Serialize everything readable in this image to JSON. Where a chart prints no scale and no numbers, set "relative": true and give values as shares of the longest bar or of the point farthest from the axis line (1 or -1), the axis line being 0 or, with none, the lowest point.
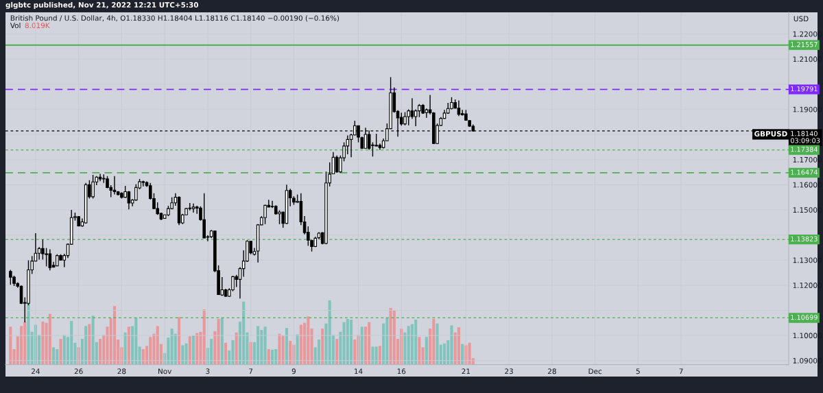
{
  "chart_data": [
    {
      "type": "candlestick",
      "title": "British Pound / U.S. Dollar, 4h, O1.18330 H1.18404 L1.18116 C1.18140 −0.00190 (−0.16%)",
      "ylabel": "USD",
      "annotations": [
        "glgbtc published, Nov 21, 2022 12:21 UTC+5:30",
        "GBPUSD"
      ],
      "categories": [
        null,
        null,
        null,
        null,
        null,
        null,
        null,
        "24",
        null,
        null,
        null,
        null,
        null,
        null,
        null,
        null,
        null,
        null,
        null,
        "26",
        null,
        null,
        null,
        null,
        null,
        null,
        null,
        null,
        null,
        null,
        null,
        "28",
        null,
        null,
        null,
        null,
        null,
        null,
        null,
        null,
        null,
        null,
        null,
        "Nov",
        null,
        null,
        null,
        null,
        null,
        null,
        null,
        null,
        null,
        null,
        null,
        "3",
        null,
        null,
        null,
        null,
        null,
        null,
        null,
        null,
        null,
        null,
        null,
        "7",
        null,
        null,
        null,
        null,
        null,
        null,
        null,
        null,
        null,
        null,
        null,
        "9",
        null,
        null,
        null,
        null,
        null,
        null,
        null,
        null,
        null,
        null,
        null,
        null,
        null,
        null,
        null,
        null,
        null,
        "14",
        null,
        null,
        null,
        null,
        null,
        null,
        null,
        null,
        null,
        null,
        null,
        "16",
        null,
        null,
        null,
        null,
        null,
        null,
        null,
        null,
        null,
        null,
        null,
        null,
        null,
        null,
        null,
        null,
        null,
        "21",
        null,
        null,
        null,
        null,
        null,
        null,
        null,
        null,
        null,
        null,
        null,
        "23",
        null,
        null,
        null,
        null,
        null,
        null,
        null,
        null,
        null,
        null,
        null,
        "28",
        null,
        null,
        null,
        null,
        null,
        null,
        null,
        null,
        null,
        null,
        null,
        "Dec",
        null,
        null,
        null,
        null,
        null,
        null,
        null,
        null,
        null,
        null,
        null,
        "5",
        null,
        null,
        null,
        null,
        null,
        null,
        null,
        null,
        null,
        null,
        null,
        "7",
        null,
        null,
        null,
        null,
        null,
        null,
        null,
        null,
        null,
        null,
        null,
        null,
        null,
        null,
        null,
        null,
        null,
        null,
        null,
        null,
        null,
        null,
        null,
        null,
        null,
        null,
        null,
        null,
        null,
        null
      ],
      "ohlc": [
        [
          1.1255,
          1.1261,
          1.1202,
          1.1232
        ],
        [
          1.1232,
          1.1238,
          1.1197,
          1.1207
        ],
        [
          1.1207,
          1.1211,
          1.119,
          1.1196
        ],
        [
          1.1196,
          1.1199,
          1.1125,
          1.1128
        ],
        [
          1.1128,
          1.1152,
          1.1052,
          1.1131
        ],
        [
          1.1128,
          1.1299,
          1.112,
          1.1261
        ],
        [
          1.1261,
          1.1316,
          1.1245,
          1.1296
        ],
        [
          1.1296,
          1.1407,
          1.1296,
          1.1327
        ],
        [
          1.1327,
          1.1352,
          1.1302,
          1.1346
        ],
        [
          1.1346,
          1.1382,
          1.1302,
          1.1325
        ],
        [
          1.1325,
          1.1348,
          1.1275,
          1.1322
        ],
        [
          1.1325,
          1.1343,
          1.1259,
          1.127
        ],
        [
          1.1279,
          1.1293,
          1.127,
          1.1272
        ],
        [
          1.1277,
          1.1323,
          1.1277,
          1.1318
        ],
        [
          1.1318,
          1.1323,
          1.1298,
          1.13
        ],
        [
          1.13,
          1.1325,
          1.1272,
          1.1318
        ],
        [
          1.1318,
          1.1366,
          1.1308,
          1.1363
        ],
        [
          1.1363,
          1.15,
          1.1361,
          1.1469
        ],
        [
          1.1469,
          1.1489,
          1.1457,
          1.1473
        ],
        [
          1.1473,
          1.1475,
          1.1434,
          1.1436
        ],
        [
          1.1436,
          1.1466,
          1.1432,
          1.1452
        ],
        [
          1.1448,
          1.1607,
          1.1445,
          1.16
        ],
        [
          1.16,
          1.1618,
          1.1545,
          1.1552
        ],
        [
          1.1552,
          1.1639,
          1.1545,
          1.1611
        ],
        [
          1.1611,
          1.1634,
          1.1598,
          1.163
        ],
        [
          1.163,
          1.1643,
          1.1614,
          1.1623
        ],
        [
          1.1623,
          1.1641,
          1.1607,
          1.1625
        ],
        [
          1.1623,
          1.1634,
          1.1586,
          1.1589
        ],
        [
          1.1589,
          1.1598,
          1.155,
          1.1578
        ],
        [
          1.1578,
          1.1634,
          1.1561,
          1.1572
        ],
        [
          1.1572,
          1.1575,
          1.1557,
          1.1561
        ],
        [
          1.1566,
          1.157,
          1.1545,
          1.155
        ],
        [
          1.155,
          1.1595,
          1.1548,
          1.1572
        ],
        [
          1.1572,
          1.1575,
          1.1502,
          1.1527
        ],
        [
          1.1527,
          1.1543,
          1.1514,
          1.1539
        ],
        [
          1.1539,
          1.1602,
          1.1536,
          1.1589
        ],
        [
          1.1587,
          1.1623,
          1.1582,
          1.1612
        ],
        [
          1.1612,
          1.1616,
          1.1593,
          1.1609
        ],
        [
          1.1609,
          1.1613,
          1.1591,
          1.1596
        ],
        [
          1.1596,
          1.1607,
          1.1541,
          1.1545
        ],
        [
          1.1545,
          1.1566,
          1.1503,
          1.1505
        ],
        [
          1.1505,
          1.153,
          1.148,
          1.1484
        ],
        [
          1.1486,
          1.1489,
          1.1459,
          1.1463
        ],
        [
          1.1466,
          1.1481,
          1.1466,
          1.148
        ],
        [
          1.148,
          1.1516,
          1.1475,
          1.1505
        ],
        [
          1.1505,
          1.155,
          1.1502,
          1.1528
        ],
        [
          1.1528,
          1.1566,
          1.1516,
          1.155
        ],
        [
          1.155,
          1.1554,
          1.1439,
          1.1448
        ],
        [
          1.1448,
          1.1484,
          1.1443,
          1.148
        ],
        [
          1.148,
          1.1507,
          1.148,
          1.1505
        ],
        [
          1.1505,
          1.1527,
          1.1498,
          1.1507
        ],
        [
          1.1505,
          1.1525,
          1.1489,
          1.1511
        ],
        [
          1.1511,
          1.1516,
          1.1484,
          1.1507
        ],
        [
          1.1507,
          1.1514,
          1.1457,
          1.1461
        ],
        [
          1.1461,
          1.1566,
          1.1387,
          1.1388
        ],
        [
          1.1391,
          1.1399,
          1.1375,
          1.1393
        ],
        [
          1.1393,
          1.142,
          1.1388,
          1.1416
        ],
        [
          1.1416,
          1.1416,
          1.1252,
          1.1257
        ],
        [
          1.1258,
          1.1279,
          1.1161,
          1.1163
        ],
        [
          1.1161,
          1.1232,
          1.1158,
          1.1182
        ],
        [
          1.1182,
          1.1186,
          1.1154,
          1.1156
        ],
        [
          1.1156,
          1.1188,
          1.1154,
          1.1182
        ],
        [
          1.1182,
          1.1238,
          1.1176,
          1.1234
        ],
        [
          1.1234,
          1.1241,
          1.1193,
          1.1223
        ],
        [
          1.1223,
          1.1272,
          1.1147,
          1.1266
        ],
        [
          1.1266,
          1.1339,
          1.1234,
          1.1296
        ],
        [
          1.1296,
          1.1379,
          1.1293,
          1.1375
        ],
        [
          1.1375,
          1.1375,
          1.1323,
          1.1329
        ],
        [
          1.1323,
          1.1348,
          1.1318,
          1.1334
        ],
        [
          1.1336,
          1.1443,
          1.129,
          1.144
        ],
        [
          1.144,
          1.1475,
          1.1439,
          1.1469
        ],
        [
          1.1469,
          1.152,
          1.1443,
          1.1518
        ],
        [
          1.1518,
          1.154,
          1.1511,
          1.1511
        ],
        [
          1.1512,
          1.1536,
          1.1507,
          1.1514
        ],
        [
          1.1514,
          1.1518,
          1.1481,
          1.1484
        ],
        [
          1.1484,
          1.1498,
          1.1443,
          1.1491
        ],
        [
          1.1491,
          1.1493,
          1.1429,
          1.1446
        ],
        [
          1.1446,
          1.16,
          1.1443,
          1.1577
        ],
        [
          1.1577,
          1.1584,
          1.1514,
          1.1548
        ],
        [
          1.1546,
          1.1554,
          1.152,
          1.1531
        ],
        [
          1.153,
          1.1561,
          1.1527,
          1.1534
        ],
        [
          1.1534,
          1.1566,
          1.1439,
          1.1452
        ],
        [
          1.1452,
          1.1475,
          1.1402,
          1.1409
        ],
        [
          1.1411,
          1.1434,
          1.1357,
          1.1379
        ],
        [
          1.1378,
          1.1381,
          1.1334,
          1.1354
        ],
        [
          1.1354,
          1.1393,
          1.1352,
          1.1387
        ],
        [
          1.1389,
          1.1411,
          1.1384,
          1.1407
        ],
        [
          1.1409,
          1.1411,
          1.1363,
          1.1366
        ],
        [
          1.1366,
          1.1652,
          1.1363,
          1.1607
        ],
        [
          1.1607,
          1.1689,
          1.1593,
          1.1642
        ],
        [
          1.1643,
          1.173,
          1.1642,
          1.1709
        ],
        [
          1.1709,
          1.1716,
          1.1648,
          1.1651
        ],
        [
          1.1651,
          1.1716,
          1.1648,
          1.1707
        ],
        [
          1.1707,
          1.1769,
          1.1693,
          1.1754
        ],
        [
          1.1754,
          1.1796,
          1.1721,
          1.178
        ],
        [
          1.178,
          1.1803,
          1.1709,
          1.1798
        ],
        [
          1.1798,
          1.1855,
          1.1796,
          1.1835
        ],
        [
          1.1835,
          1.1835,
          1.1769,
          1.1789
        ],
        [
          1.1787,
          1.1791,
          1.1744,
          1.1745
        ],
        [
          1.1745,
          1.1827,
          1.1744,
          1.18
        ],
        [
          1.18,
          1.1816,
          1.1739,
          1.1745
        ],
        [
          1.1756,
          1.1769,
          1.1712,
          1.1758
        ],
        [
          1.1757,
          1.1803,
          1.1753,
          1.1754
        ],
        [
          1.1757,
          1.1764,
          1.1739,
          1.1748
        ],
        [
          1.1748,
          1.1784,
          1.1744,
          1.1775
        ],
        [
          1.1775,
          1.1844,
          1.1773,
          1.1823
        ],
        [
          1.1823,
          1.2028,
          1.1821,
          1.1966
        ],
        [
          1.1966,
          1.1987,
          1.1887,
          1.1891
        ],
        [
          1.1892,
          1.1896,
          1.1791,
          1.1866
        ],
        [
          1.1868,
          1.1887,
          1.1835,
          1.1842
        ],
        [
          1.1842,
          1.1889,
          1.1836,
          1.1871
        ],
        [
          1.1871,
          1.19,
          1.1836,
          1.1894
        ],
        [
          1.1894,
          1.1944,
          1.1862,
          1.1871
        ],
        [
          1.1871,
          1.19,
          1.1833,
          1.1894
        ],
        [
          1.1894,
          1.1921,
          1.1869,
          1.1915
        ],
        [
          1.1916,
          1.1921,
          1.1882,
          1.1885
        ],
        [
          1.1887,
          1.1903,
          1.1866,
          1.1898
        ],
        [
          1.1898,
          1.1957,
          1.188,
          1.1886
        ],
        [
          1.1886,
          1.1889,
          1.1762,
          1.1764
        ],
        [
          1.1764,
          1.1844,
          1.1762,
          1.1836
        ],
        [
          1.1836,
          1.1869,
          1.1835,
          1.1864
        ],
        [
          1.1864,
          1.1898,
          1.1862,
          1.1885
        ],
        [
          1.1885,
          1.1926,
          1.1882,
          1.1903
        ],
        [
          1.1903,
          1.1948,
          1.19,
          1.1927
        ],
        [
          1.1927,
          1.1939,
          1.1903,
          1.1905
        ],
        [
          1.1905,
          1.1935,
          1.1873,
          1.188
        ],
        [
          1.1883,
          1.1898,
          1.1875,
          1.1878
        ],
        [
          1.1882,
          1.1898,
          1.1855,
          1.1857
        ],
        [
          1.1855,
          1.1857,
          1.183,
          1.1833
        ],
        [
          1.1833,
          1.184,
          1.1812,
          1.1814
        ],
        null,
        null,
        null,
        null,
        null,
        null,
        null,
        null,
        null,
        null,
        null,
        null,
        null,
        null,
        null,
        null,
        null,
        null,
        null,
        null,
        null,
        null,
        null,
        null,
        null,
        null,
        null,
        null,
        null,
        null,
        null,
        null,
        null,
        null,
        null,
        null,
        null,
        null,
        null,
        null,
        null,
        null,
        null,
        null,
        null,
        null,
        null,
        null,
        null,
        null,
        null,
        null,
        null,
        null,
        null,
        null,
        null,
        null,
        null,
        null,
        null,
        null,
        null,
        null,
        null,
        null,
        null,
        null,
        null,
        null,
        null,
        null,
        null,
        null,
        null,
        null,
        null,
        null,
        null,
        null,
        null,
        null,
        null,
        null,
        null,
        null,
        null,
        null
      ],
      "ylim": [
        1.0884,
        1.2286
      ],
      "yticks": [
        {
          "value": 1.09,
          "label": "1.09000"
        },
        {
          "value": 1.1,
          "label": "1.10000"
        },
        {
          "value": 1.11,
          "label": null
        },
        {
          "value": 1.12,
          "label": "1.12000"
        },
        {
          "value": 1.13,
          "label": "1.13000"
        },
        {
          "value": 1.14,
          "label": null
        },
        {
          "value": 1.15,
          "label": "1.15000"
        },
        {
          "value": 1.16,
          "label": "1.16000"
        },
        {
          "value": 1.17,
          "label": "1.17000"
        },
        {
          "value": 1.18,
          "label": null
        },
        {
          "value": 1.19,
          "label": "1.19000"
        },
        {
          "value": 1.2,
          "label": null
        },
        {
          "value": 1.21,
          "label": "1.21000"
        },
        {
          "value": 1.22,
          "label": "1.22000"
        }
      ],
      "ref_lines": [
        {
          "axis": "y",
          "value": 1.21557,
          "label": "1.21557",
          "color": "#4caf50",
          "line_style": "solid"
        },
        {
          "axis": "y",
          "value": 1.19791,
          "label": "1.19791",
          "color": "#7f2bff",
          "line_style": "dashed"
        },
        {
          "axis": "y",
          "value": 1.1814,
          "label": "1.18140\n03:09:03",
          "color": "#000000",
          "line_style": "dotted"
        },
        {
          "axis": "y",
          "value": 1.17384,
          "label": "1.17384",
          "color": "#4caf50",
          "line_style": "dotted"
        },
        {
          "axis": "y",
          "value": 1.16474,
          "label": "1.16474",
          "color": "#4caf50",
          "line_style": "dashed"
        },
        {
          "axis": "y",
          "value": 1.13823,
          "label": "1.13823",
          "color": "#4caf50",
          "line_style": "dotted"
        },
        {
          "axis": "y",
          "value": 1.10699,
          "label": "1.10699",
          "color": "#4caf50",
          "line_style": "dotted"
        }
      ],
      "grid": true
    },
    {
      "type": "bar",
      "title": "Vol 8.019K",
      "relative": true,
      "categories": [
        null,
        null,
        null,
        null,
        null,
        null,
        null,
        null,
        null,
        null,
        null,
        null,
        null,
        null,
        null,
        null,
        null,
        null,
        null,
        null,
        null,
        null,
        null,
        null,
        null,
        null,
        null,
        null,
        null,
        null,
        null,
        null,
        null,
        null,
        null,
        null,
        null,
        null,
        null,
        null,
        null,
        null,
        null,
        null,
        null,
        null,
        null,
        null,
        null,
        null,
        null,
        null,
        null,
        null,
        null,
        null,
        null,
        null,
        null,
        null,
        null,
        null,
        null,
        null,
        null,
        null,
        null,
        null,
        null,
        null,
        null,
        null,
        null,
        null,
        null,
        null,
        null,
        null,
        null,
        null,
        null,
        null,
        null,
        null,
        null,
        null,
        null,
        null,
        null,
        null,
        null,
        null,
        null,
        null,
        null,
        null,
        null,
        null,
        null,
        null,
        null,
        null,
        null,
        null,
        null,
        null,
        null,
        null,
        null,
        null,
        null,
        null,
        null,
        null,
        null,
        null,
        null,
        null,
        null,
        null,
        null,
        null,
        null,
        null,
        null,
        null,
        null,
        null,
        null,
        null
      ],
      "values": [
        0.59,
        0.24,
        0.44,
        0.6,
        0.67,
        0.97,
        0.51,
        0.62,
        0.46,
        0.67,
        0.65,
        0.79,
        0.27,
        0.24,
        0.4,
        0.46,
        0.43,
        0.68,
        0.34,
        0.27,
        0.4,
        0.6,
        0.63,
        0.76,
        0.35,
        0.4,
        0.46,
        0.59,
        0.72,
        0.91,
        0.39,
        0.27,
        0.5,
        0.59,
        0.6,
        0.73,
        0.28,
        0.24,
        0.29,
        0.43,
        0.48,
        0.6,
        0.32,
        0.18,
        0.42,
        0.56,
        0.48,
        0.74,
        0.3,
        0.33,
        0.44,
        0.45,
        0.49,
        0.51,
        0.86,
        0.26,
        0.4,
        0.52,
        0.71,
        0.73,
        0.34,
        0.22,
        0.38,
        0.5,
        0.67,
        0.98,
        0.5,
        0.35,
        0.35,
        0.6,
        0.54,
        0.59,
        0.24,
        0.23,
        0.24,
        0.48,
        0.45,
        0.57,
        0.37,
        0.31,
        0.47,
        0.62,
        0.65,
        0.75,
        0.56,
        0.27,
        0.39,
        0.56,
        0.64,
        1,
        0.46,
        0.4,
        0.51,
        0.66,
        0.71,
        0.7,
        0.39,
        0.46,
        0.59,
        0.59,
        0.66,
        0.28,
        0.28,
        0.29,
        0.64,
        0.73,
        0.88,
        0.84,
        0.4,
        0.56,
        0.5,
        0.6,
        0.63,
        0.7,
        0.43,
        0.27,
        0.43,
        0.56,
        0.71,
        0.64,
        0.31,
        0.33,
        0.38,
        0.61,
        0.5,
        0.58,
        0.32,
        0.3,
        0.34,
        0.1
      ],
      "colors": [
        "#e8979a",
        "#e8979a",
        "#e8979a",
        "#e8979a",
        "#e8979a",
        "#80c4bd",
        "#80c4bd",
        "#80c4bd",
        "#80c4bd",
        "#e8979a",
        "#e8979a",
        "#e8979a",
        "#80c4bd",
        "#80c4bd",
        "#e8979a",
        "#80c4bd",
        "#80c4bd",
        "#80c4bd",
        "#80c4bd",
        "#e8979a",
        "#80c4bd",
        "#80c4bd",
        "#e8979a",
        "#80c4bd",
        "#80c4bd",
        "#e8979a",
        "#e8979a",
        "#e8979a",
        "#e8979a",
        "#e8979a",
        "#e8979a",
        "#e8979a",
        "#80c4bd",
        "#e8979a",
        "#80c4bd",
        "#80c4bd",
        "#80c4bd",
        "#e8979a",
        "#e8979a",
        "#e8979a",
        "#e8979a",
        "#e8979a",
        "#e8979a",
        "#80c4bd",
        "#80c4bd",
        "#80c4bd",
        "#80c4bd",
        "#e8979a",
        "#80c4bd",
        "#80c4bd",
        "#e8979a",
        "#80c4bd",
        "#e8979a",
        "#e8979a",
        "#e8979a",
        "#80c4bd",
        "#80c4bd",
        "#e8979a",
        "#e8979a",
        "#80c4bd",
        "#e8979a",
        "#80c4bd",
        "#80c4bd",
        "#e8979a",
        "#80c4bd",
        "#80c4bd",
        "#80c4bd",
        "#e8979a",
        "#80c4bd",
        "#80c4bd",
        "#80c4bd",
        "#80c4bd",
        "#e8979a",
        "#80c4bd",
        "#80c4bd",
        "#e8979a",
        "#e8979a",
        "#80c4bd",
        "#e8979a",
        "#e8979a",
        "#80c4bd",
        "#e8979a",
        "#e8979a",
        "#e8979a",
        "#e8979a",
        "#80c4bd",
        "#80c4bd",
        "#e8979a",
        "#80c4bd",
        "#80c4bd",
        "#80c4bd",
        "#e8979a",
        "#80c4bd",
        "#80c4bd",
        "#80c4bd",
        "#80c4bd",
        "#e8979a",
        "#e8979a",
        "#80c4bd",
        "#e8979a",
        "#e8979a",
        "#80c4bd",
        "#80c4bd",
        "#e8979a",
        "#80c4bd",
        "#80c4bd",
        "#e8979a",
        "#e8979a",
        "#e8979a",
        "#e8979a",
        "#80c4bd",
        "#80c4bd",
        "#80c4bd",
        "#80c4bd",
        "#e8979a",
        "#e8979a",
        "#80c4bd",
        "#e8979a",
        "#e8979a",
        "#80c4bd",
        "#80c4bd",
        "#80c4bd",
        "#80c4bd",
        "#80c4bd",
        "#e8979a",
        "#e8979a",
        "#80c4bd",
        "#e8979a",
        "#e8979a",
        "#e8979a"
      ]
    }
  ]
}
